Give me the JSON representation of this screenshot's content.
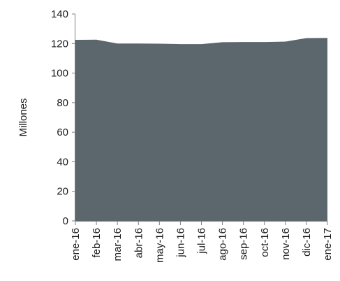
{
  "chart_data": {
    "type": "area",
    "categories": [
      "ene-16",
      "feb-16",
      "mar-16",
      "abr-16",
      "may-16",
      "jun-16",
      "jul-16",
      "ago-16",
      "sep-16",
      "oct-16",
      "nov-16",
      "dic-16",
      "ene-17"
    ],
    "series": [
      {
        "values": [
          122.5,
          122.6,
          120.0,
          120.0,
          119.9,
          119.6,
          119.6,
          120.9,
          121.0,
          121.0,
          121.3,
          123.7,
          123.8
        ]
      }
    ],
    "ylabel": "Millones",
    "xlabel": "",
    "title": "",
    "ylim": [
      0,
      140
    ],
    "yticks": [
      0,
      20,
      40,
      60,
      80,
      100,
      120,
      140
    ],
    "grid": false,
    "legend": "none",
    "colors": {
      "area": "#5b666d",
      "axis": "#7f7f7f",
      "text": "#1a1a1a"
    }
  }
}
